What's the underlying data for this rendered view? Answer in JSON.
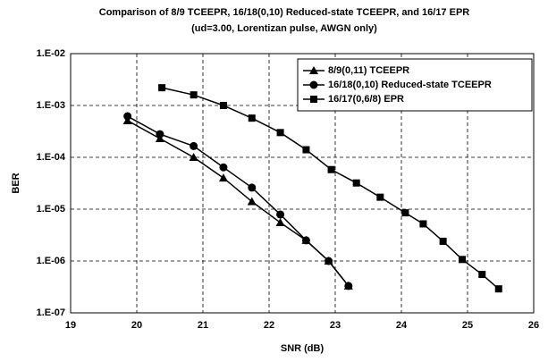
{
  "chart_data": {
    "type": "line",
    "title": "Comparison of 8/9 TCEEPR, 16/18(0,10) Reduced-state TCEEPR, and 16/17 EPR",
    "subtitle": "(ud=3.00, Lorentizan pulse, AWGN only)",
    "x_label": "SNR (dB)",
    "y_label": "BER",
    "xlim": [
      19,
      26
    ],
    "xticks": [
      19,
      20,
      21,
      22,
      23,
      24,
      25,
      26
    ],
    "ylim": [
      1e-07,
      0.01
    ],
    "log_y": true,
    "grid": true,
    "legend_position": "upper right",
    "yticks": [
      {
        "value": 1e-07,
        "label": "1.E-07"
      },
      {
        "value": 1e-06,
        "label": "1.E-06"
      },
      {
        "value": 1e-05,
        "label": "1.E-05"
      },
      {
        "value": 0.0001,
        "label": "1.E-04"
      },
      {
        "value": 0.001,
        "label": "1.E-03"
      },
      {
        "value": 0.01,
        "label": "1.E-02"
      }
    ],
    "series": [
      {
        "name": "8/9(0,11) TCEEPR",
        "color": "#000000",
        "marker": "triangle",
        "x": [
          19.86,
          20.35,
          20.86,
          21.31,
          21.74,
          22.17,
          22.56,
          22.9,
          23.2
        ],
        "values": [
          0.00051,
          0.00023,
          0.0001,
          4e-05,
          1.4e-05,
          5.5e-06,
          2.5e-06,
          1e-06,
          3.3e-07
        ]
      },
      {
        "name": "16/18(0,10) Reduced-state TCEEPR",
        "color": "#000000",
        "marker": "circle",
        "x": [
          19.86,
          20.35,
          20.86,
          21.31,
          21.74,
          22.17,
          22.56,
          22.9,
          23.2
        ],
        "values": [
          0.00062,
          0.00028,
          0.000165,
          6.4e-05,
          2.6e-05,
          7.9e-06,
          2.5e-06,
          1e-06,
          3.3e-07
        ]
      },
      {
        "name": "16/17(0,6/8) EPR",
        "color": "#000000",
        "marker": "square",
        "x": [
          20.38,
          20.86,
          21.31,
          21.74,
          22.17,
          22.56,
          22.94,
          23.32,
          23.68,
          24.06,
          24.33,
          24.63,
          24.92,
          25.22,
          25.47
        ],
        "values": [
          0.0022,
          0.0016,
          0.001,
          0.00057,
          0.0003,
          0.00014,
          5.8e-05,
          3.2e-05,
          1.7e-05,
          8.5e-06,
          5.2e-06,
          2.4e-06,
          1.07e-06,
          5.5e-07,
          2.9e-07
        ]
      }
    ]
  }
}
